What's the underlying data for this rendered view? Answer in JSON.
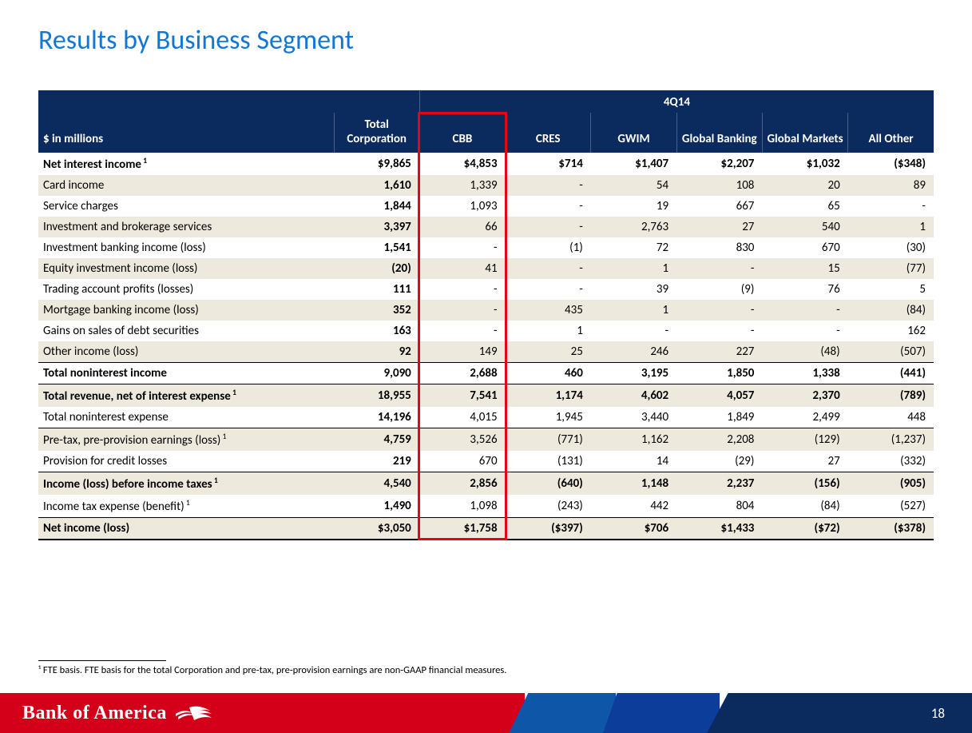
{
  "title": "Results by Business Segment",
  "period_label": "4Q14",
  "row_header_label": "$ in millions",
  "columns": [
    "Total Corporation",
    "CBB",
    "CRES",
    "GWIM",
    "Global Banking",
    "Global Markets",
    "All Other"
  ],
  "highlight_column_index": 1,
  "highlight_color": "#e30613",
  "rows": [
    {
      "label": "Net interest income",
      "sup": "1",
      "bold": true,
      "shaded": false,
      "cells": [
        "$9,865",
        "$4,853",
        "$714",
        "$1,407",
        "$2,207",
        "$1,032",
        "($348)"
      ]
    },
    {
      "label": "Card income",
      "shaded": true,
      "bold": false,
      "cells": [
        "1,610",
        "1,339",
        "-",
        "54",
        "108",
        "20",
        "89"
      ]
    },
    {
      "label": "Service charges",
      "shaded": false,
      "cells": [
        "1,844",
        "1,093",
        "-",
        "19",
        "667",
        "65",
        "-"
      ]
    },
    {
      "label": "Investment and brokerage services",
      "shaded": true,
      "cells": [
        "3,397",
        "66",
        "-",
        "2,763",
        "27",
        "540",
        "1"
      ]
    },
    {
      "label": "Investment banking income (loss)",
      "shaded": false,
      "cells": [
        "1,541",
        "-",
        "(1)",
        "72",
        "830",
        "670",
        "(30)"
      ]
    },
    {
      "label": "Equity investment income (loss)",
      "shaded": true,
      "cells": [
        "(20)",
        "41",
        "-",
        "1",
        "-",
        "15",
        "(77)"
      ]
    },
    {
      "label": "Trading account profits (losses)",
      "shaded": false,
      "cells": [
        "111",
        "-",
        "-",
        "39",
        "(9)",
        "76",
        "5"
      ]
    },
    {
      "label": "Mortgage banking income (loss)",
      "shaded": true,
      "cells": [
        "352",
        "-",
        "435",
        "1",
        "-",
        "-",
        "(84)"
      ]
    },
    {
      "label": "Gains on sales of debt securities",
      "shaded": false,
      "cells": [
        "163",
        "-",
        "1",
        "-",
        "-",
        "-",
        "162"
      ]
    },
    {
      "label": "Other income (loss)",
      "shaded": true,
      "thin_bottom": true,
      "cells": [
        "92",
        "149",
        "25",
        "246",
        "227",
        "(48)",
        "(507)"
      ]
    },
    {
      "label": "Total noninterest income",
      "bold": true,
      "cells": [
        "9,090",
        "2,688",
        "460",
        "3,195",
        "1,850",
        "1,338",
        "(441)"
      ]
    },
    {
      "label": "Total revenue, net of interest expense",
      "sup": "1",
      "bold": true,
      "shaded": true,
      "bt": true,
      "cells": [
        "18,955",
        "7,541",
        "1,174",
        "4,602",
        "4,057",
        "2,370",
        "(789)"
      ]
    },
    {
      "label": "Total noninterest expense",
      "cells": [
        "14,196",
        "4,015",
        "1,945",
        "3,440",
        "1,849",
        "2,499",
        "448"
      ]
    },
    {
      "label": "Pre-tax, pre-provision earnings (loss)",
      "sup": "1",
      "shaded": true,
      "bt": true,
      "cells": [
        "4,759",
        "3,526",
        "(771)",
        "1,162",
        "2,208",
        "(129)",
        "(1,237)"
      ]
    },
    {
      "label": "Provision for credit losses",
      "thin_bottom": true,
      "cells": [
        "219",
        "670",
        "(131)",
        "14",
        "(29)",
        "27",
        "(332)"
      ]
    },
    {
      "label": "Income (loss) before income taxes",
      "sup": "1",
      "bold": true,
      "shaded": true,
      "cells": [
        "4,540",
        "2,856",
        "(640)",
        "1,148",
        "2,237",
        "(156)",
        "(905)"
      ]
    },
    {
      "label": "Income tax expense (benefit)",
      "sup": "1",
      "thin_bottom": true,
      "cells": [
        "1,490",
        "1,098",
        "(243)",
        "442",
        "804",
        "(84)",
        "(527)"
      ]
    },
    {
      "label": "Net income (loss)",
      "bold": true,
      "shaded": true,
      "bb_last": true,
      "cells": [
        "$3,050",
        "$1,758",
        "($397)",
        "$706",
        "$1,433",
        "($72)",
        "($378)"
      ]
    }
  ],
  "footnote": "¹ FTE basis. FTE basis for the total Corporation and pre-tax, pre-provision earnings are non-GAAP financial measures.",
  "brand_name": "Bank of America",
  "page_number": "18",
  "colors": {
    "title": "#1077d6",
    "header_bg": "#0b2a5e",
    "shaded_row": "#ede9dd",
    "footer_red": "#d4001a",
    "footer_blue1": "#0e57a8",
    "footer_blue2": "#0c3d9a",
    "footer_blue3": "#0b2a5e"
  },
  "typography": {
    "title_fontsize": 34,
    "table_fontsize": 15,
    "footnote_fontsize": 12.5
  }
}
